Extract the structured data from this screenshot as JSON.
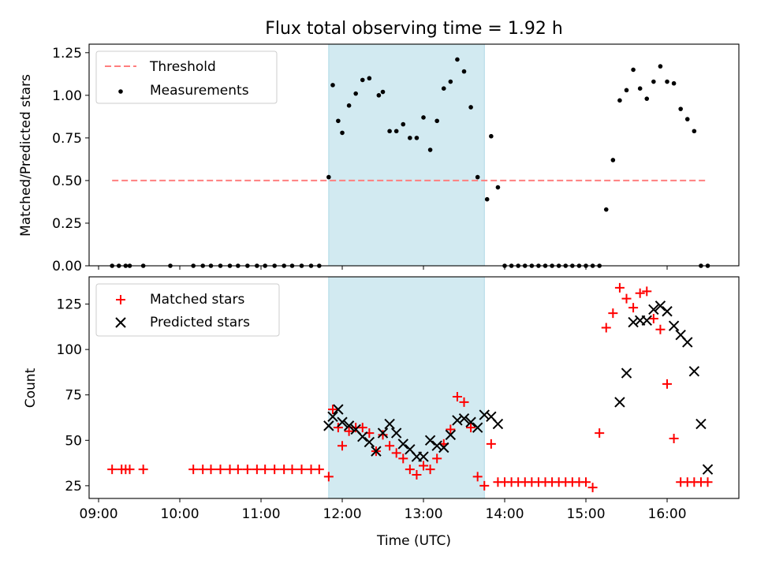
{
  "title": "Flux total observing time = 1.92 h",
  "colors": {
    "threshold": "#ff7f7f",
    "measurements": "#000000",
    "matched": "#ff0000",
    "predicted": "#000000",
    "shade": "#add8e6"
  },
  "chart_data": [
    {
      "type": "scatter",
      "ylabel": "Matched/Predicted stars",
      "ylim": [
        0,
        1.3
      ],
      "yticks": [
        0,
        0.25,
        0.5,
        0.75,
        1.0,
        1.25
      ],
      "ytick_labels": [
        "0.00",
        "0.25",
        "0.50",
        "0.75",
        "1.00",
        "1.25"
      ],
      "grid": false,
      "legend": "upper left",
      "shaded_span": [
        "11:50",
        "13:45"
      ],
      "series": [
        {
          "name": "Threshold",
          "style": "dashed-line",
          "x": [
            "09:10",
            "16:30"
          ],
          "y": [
            0.5,
            0.5
          ]
        },
        {
          "name": "Measurements",
          "style": "dot",
          "x": [
            "09:10",
            "09:15",
            "09:20",
            "09:23",
            "09:33",
            "09:53",
            "10:10",
            "10:17",
            "10:23",
            "10:30",
            "10:37",
            "10:43",
            "10:50",
            "10:57",
            "11:03",
            "11:10",
            "11:17",
            "11:23",
            "11:30",
            "11:37",
            "11:43",
            "11:50",
            "11:53",
            "11:57",
            "12:00",
            "12:05",
            "12:10",
            "12:15",
            "12:20",
            "12:27",
            "12:30",
            "12:35",
            "12:40",
            "12:45",
            "12:50",
            "12:55",
            "13:00",
            "13:05",
            "13:10",
            "13:15",
            "13:20",
            "13:25",
            "13:30",
            "13:35",
            "13:40",
            "13:47",
            "13:50",
            "13:55",
            "14:00",
            "14:05",
            "14:10",
            "14:15",
            "14:20",
            "14:25",
            "14:30",
            "14:35",
            "14:40",
            "14:45",
            "14:50",
            "14:55",
            "15:00",
            "15:05",
            "15:10",
            "15:15",
            "15:20",
            "15:25",
            "15:30",
            "15:35",
            "15:40",
            "15:45",
            "15:50",
            "15:55",
            "16:00",
            "16:05",
            "16:10",
            "16:15",
            "16:20",
            "16:25",
            "16:30"
          ],
          "y": [
            0,
            0,
            0,
            0,
            0,
            0,
            0,
            0,
            0,
            0,
            0,
            0,
            0,
            0,
            0,
            0,
            0,
            0,
            0,
            0,
            0,
            0.52,
            1.06,
            0.85,
            0.78,
            0.94,
            1.01,
            1.09,
            1.1,
            1.0,
            1.02,
            0.79,
            0.79,
            0.83,
            0.75,
            0.75,
            0.87,
            0.68,
            0.85,
            1.04,
            1.08,
            1.21,
            1.14,
            0.93,
            0.52,
            0.39,
            0.76,
            0.46,
            0,
            0,
            0,
            0,
            0,
            0,
            0,
            0,
            0,
            0,
            0,
            0,
            0,
            0,
            0,
            0.33,
            0.62,
            0.97,
            1.03,
            1.15,
            1.04,
            0.98,
            1.08,
            1.17,
            1.08,
            1.07,
            0.92,
            0.86,
            0.79,
            0,
            0
          ]
        }
      ]
    },
    {
      "type": "scatter",
      "xlabel": "Time (UTC)",
      "ylabel": "Count",
      "ylim": [
        18,
        140
      ],
      "yticks": [
        25,
        50,
        75,
        100,
        125
      ],
      "ytick_labels": [
        "25",
        "50",
        "75",
        "100",
        "125"
      ],
      "xticks": [
        "09:00",
        "10:00",
        "11:00",
        "12:00",
        "13:00",
        "14:00",
        "15:00",
        "16:00"
      ],
      "grid": false,
      "legend": "upper left",
      "shaded_span": [
        "11:50",
        "13:45"
      ],
      "series": [
        {
          "name": "Matched stars",
          "style": "plus",
          "x": [
            "09:10",
            "09:17",
            "09:20",
            "09:23",
            "09:33",
            "10:10",
            "10:17",
            "10:23",
            "10:30",
            "10:37",
            "10:43",
            "10:50",
            "10:57",
            "11:03",
            "11:10",
            "11:17",
            "11:23",
            "11:30",
            "11:37",
            "11:43",
            "11:50",
            "11:53",
            "11:57",
            "12:00",
            "12:05",
            "12:10",
            "12:15",
            "12:20",
            "12:25",
            "12:30",
            "12:35",
            "12:40",
            "12:45",
            "12:50",
            "12:55",
            "13:00",
            "13:05",
            "13:10",
            "13:15",
            "13:20",
            "13:25",
            "13:30",
            "13:35",
            "13:40",
            "13:45",
            "13:50",
            "13:55",
            "14:00",
            "14:05",
            "14:10",
            "14:15",
            "14:20",
            "14:25",
            "14:30",
            "14:35",
            "14:40",
            "14:45",
            "14:50",
            "14:55",
            "15:00",
            "15:05",
            "15:10",
            "15:15",
            "15:20",
            "15:25",
            "15:30",
            "15:35",
            "15:40",
            "15:45",
            "15:50",
            "15:55",
            "16:00",
            "16:05",
            "16:10",
            "16:15",
            "16:20",
            "16:25",
            "16:30"
          ],
          "y": [
            34,
            34,
            34,
            34,
            34,
            34,
            34,
            34,
            34,
            34,
            34,
            34,
            34,
            34,
            34,
            34,
            34,
            34,
            34,
            34,
            30,
            67,
            57,
            47,
            55,
            57,
            57,
            54,
            44,
            53,
            47,
            43,
            40,
            34,
            31,
            36,
            34,
            40,
            48,
            56,
            74,
            71,
            57,
            30,
            25,
            48,
            27,
            27,
            27,
            27,
            27,
            27,
            27,
            27,
            27,
            27,
            27,
            27,
            27,
            27,
            24,
            54,
            112,
            120,
            134,
            128,
            123,
            131,
            132,
            117,
            111,
            81,
            51,
            27,
            27,
            27,
            27,
            27
          ]
        },
        {
          "name": "Predicted stars",
          "style": "x",
          "x": [
            "11:50",
            "11:53",
            "11:57",
            "12:00",
            "12:05",
            "12:10",
            "12:15",
            "12:20",
            "12:25",
            "12:30",
            "12:35",
            "12:40",
            "12:45",
            "12:50",
            "12:55",
            "13:00",
            "13:05",
            "13:10",
            "13:15",
            "13:20",
            "13:25",
            "13:30",
            "13:35",
            "13:40",
            "13:45",
            "13:50",
            "13:55",
            "15:25",
            "15:30",
            "15:35",
            "15:40",
            "15:45",
            "15:50",
            "15:55",
            "16:00",
            "16:05",
            "16:10",
            "16:15",
            "16:20",
            "16:25",
            "16:30"
          ],
          "y": [
            58,
            63,
            67,
            60,
            58,
            56,
            52,
            49,
            44,
            54,
            59,
            54,
            48,
            45,
            41,
            41,
            50,
            47,
            46,
            53,
            61,
            62,
            60,
            57,
            64,
            63,
            59,
            71,
            87,
            115,
            116,
            116,
            122,
            124,
            121,
            113,
            108,
            104,
            88,
            59,
            34
          ]
        }
      ]
    }
  ]
}
